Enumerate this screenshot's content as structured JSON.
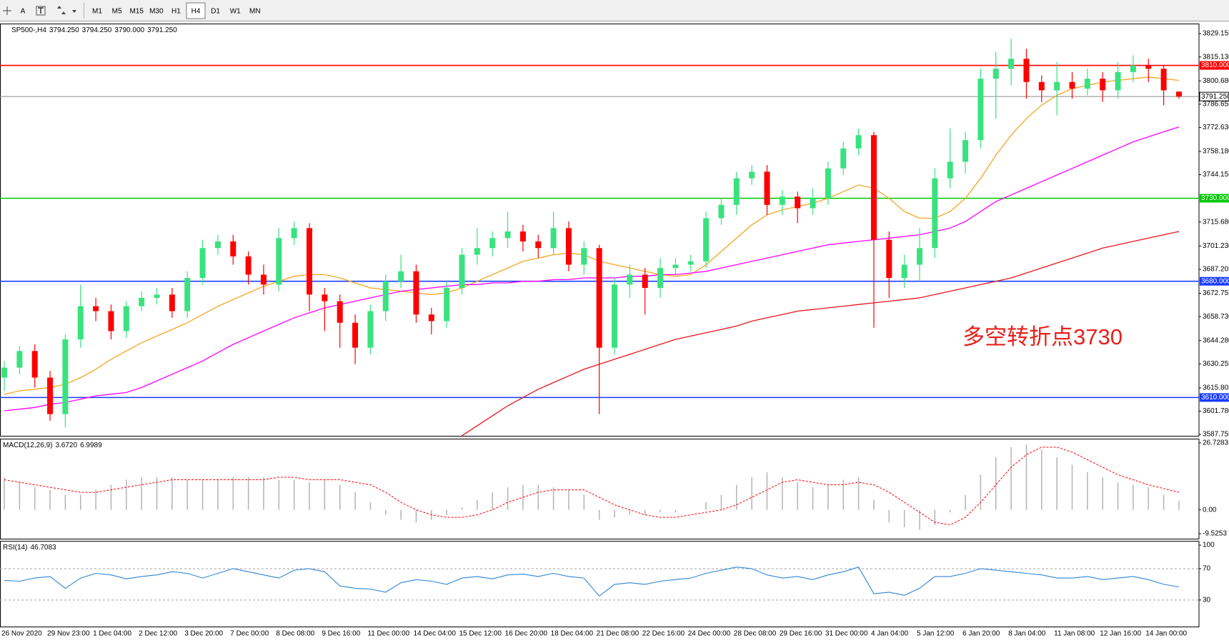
{
  "toolbar": {
    "text_tool": "A",
    "timeframes": [
      "M1",
      "M5",
      "M15",
      "M30",
      "H1",
      "H4",
      "D1",
      "W1",
      "MN"
    ],
    "active": "H4"
  },
  "chart_data": [
    {
      "type": "candlestick",
      "title": "SP500-,H4",
      "header_values": [
        {
          "value": 3794.25,
          "label": "3794.250"
        },
        {
          "value": 3794.25,
          "label": "3794.250"
        },
        {
          "value": 3790,
          "label": "3790.000"
        },
        {
          "value": 3791.25,
          "label": "3791.250"
        }
      ],
      "categories": [
        "26 Nov 2020",
        null,
        null,
        "29 Nov 23:00",
        null,
        null,
        "1 Dec 04:00",
        null,
        null,
        "2 Dec 12:00",
        null,
        null,
        "3 Dec 20:00",
        null,
        null,
        "7 Dec 00:00",
        null,
        null,
        "8 Dec 08:00",
        null,
        null,
        "9 Dec 16:00",
        null,
        null,
        "11 Dec 00:00",
        null,
        null,
        "14 Dec 04:00",
        null,
        null,
        "15 Dec 12:00",
        null,
        null,
        "16 Dec 20:00",
        null,
        null,
        "18 Dec 04:00",
        null,
        null,
        "21 Dec 08:00",
        null,
        null,
        "22 Dec 16:00",
        null,
        null,
        "24 Dec 00:00",
        null,
        null,
        "28 Dec 08:00",
        null,
        null,
        "29 Dec 16:00",
        null,
        null,
        "31 Dec 00:00",
        null,
        null,
        "4 Jan 04:00",
        null,
        null,
        "5 Jan 12:00",
        null,
        null,
        "6 Jan 20:00",
        null,
        null,
        "8 Jan 04:00",
        null,
        null,
        "11 Jan 08:00",
        null,
        null,
        "12 Jan 16:00",
        null,
        null,
        "14 Jan 00:00",
        null,
        null
      ],
      "open": [
        3622,
        3628,
        3638,
        3622,
        3600,
        3645,
        3665,
        3662,
        3650,
        3665,
        3670,
        3672,
        3662,
        3682,
        3700,
        3704,
        3695,
        3684,
        3678,
        3706,
        3712,
        3672,
        3668,
        3655,
        3640,
        3662,
        3680,
        3686,
        3660,
        3656,
        3676,
        3696,
        3700,
        3706,
        3710,
        3704,
        3700,
        3712,
        3690,
        3700,
        3640,
        3678,
        3684,
        3676,
        3688,
        3690,
        3692,
        3718,
        3726,
        3742,
        3746,
        3726,
        3731,
        3724,
        3730,
        3748,
        3760,
        3768,
        3705,
        3682,
        3690,
        3700,
        3742,
        3752,
        3765,
        3802,
        3808,
        3814,
        3800,
        3795,
        3800,
        3796,
        3802,
        3795,
        3806,
        3810,
        3808,
        3794.25
      ],
      "high": [
        3632,
        3641,
        3642,
        3626,
        3648,
        3678,
        3670,
        3666,
        3668,
        3674,
        3676,
        3676,
        3686,
        3705,
        3708,
        3708,
        3698,
        3690,
        3712,
        3716,
        3715,
        3676,
        3672,
        3660,
        3666,
        3684,
        3696,
        3690,
        3664,
        3680,
        3700,
        3712,
        3710,
        3722,
        3714,
        3708,
        3722,
        3716,
        3704,
        3702,
        3682,
        3690,
        3688,
        3694,
        3694,
        3696,
        3722,
        3730,
        3746,
        3750,
        3750,
        3735,
        3734,
        3736,
        3752,
        3764,
        3772,
        3770,
        3710,
        3696,
        3712,
        3748,
        3772,
        3770,
        3808,
        3818,
        3826,
        3820,
        3804,
        3812,
        3806,
        3808,
        3806,
        3812,
        3816,
        3814,
        3810,
        3794.25
      ],
      "low": [
        3614,
        3624,
        3616,
        3596,
        3592,
        3640,
        3656,
        3645,
        3646,
        3662,
        3666,
        3658,
        3658,
        3678,
        3696,
        3690,
        3678,
        3672,
        3674,
        3702,
        3662,
        3650,
        3640,
        3630,
        3636,
        3656,
        3676,
        3655,
        3648,
        3652,
        3672,
        3690,
        3695,
        3700,
        3698,
        3694,
        3696,
        3686,
        3684,
        3600,
        3636,
        3670,
        3660,
        3670,
        3684,
        3686,
        3688,
        3714,
        3720,
        3738,
        3720,
        3720,
        3715,
        3720,
        3726,
        3744,
        3756,
        3652,
        3670,
        3676,
        3680,
        3694,
        3736,
        3745,
        3760,
        3778,
        3798,
        3790,
        3788,
        3780,
        3790,
        3792,
        3788,
        3790,
        3800,
        3800,
        3786,
        3790
      ],
      "close": [
        3628,
        3638,
        3622,
        3600,
        3645,
        3665,
        3662,
        3650,
        3665,
        3670,
        3672,
        3662,
        3682,
        3700,
        3704,
        3695,
        3684,
        3678,
        3706,
        3712,
        3672,
        3668,
        3655,
        3640,
        3662,
        3680,
        3686,
        3660,
        3656,
        3676,
        3696,
        3700,
        3706,
        3710,
        3704,
        3700,
        3712,
        3690,
        3700,
        3640,
        3678,
        3684,
        3676,
        3688,
        3690,
        3692,
        3718,
        3726,
        3742,
        3746,
        3726,
        3731,
        3724,
        3730,
        3748,
        3760,
        3768,
        3705,
        3682,
        3690,
        3700,
        3742,
        3752,
        3765,
        3802,
        3808,
        3814,
        3800,
        3795,
        3800,
        3796,
        3802,
        3795,
        3806,
        3810,
        3808,
        3795,
        3791.25
      ],
      "up_color": "#39e27f",
      "down_color": "#ff0000",
      "series": [
        {
          "color": "#f5a623",
          "values": [
            3612,
            3614,
            3615,
            3616,
            3618,
            3622,
            3627,
            3633,
            3638,
            3643,
            3647,
            3651,
            3655,
            3660,
            3665,
            3669,
            3673,
            3677,
            3680,
            3683,
            3684,
            3684,
            3682,
            3679,
            3676,
            3675,
            3674,
            3673,
            3672,
            3673,
            3676,
            3680,
            3684,
            3688,
            3692,
            3694,
            3696,
            3697,
            3696,
            3692,
            3690,
            3688,
            3686,
            3684,
            3683,
            3684,
            3690,
            3698,
            3706,
            3714,
            3720,
            3723,
            3725,
            3727,
            3730,
            3734,
            3738,
            3736,
            3730,
            3722,
            3718,
            3718,
            3722,
            3730,
            3742,
            3756,
            3768,
            3778,
            3786,
            3792,
            3796,
            3798,
            3800,
            3801,
            3802,
            3803,
            3802,
            3801
          ]
        },
        {
          "color": "#ff00ff",
          "values": [
            3602,
            3603,
            3604,
            3606,
            3607,
            3609,
            3611,
            3612,
            3613,
            3616,
            3620,
            3624,
            3628,
            3632,
            3637,
            3642,
            3646,
            3650,
            3654,
            3658,
            3661,
            3664,
            3666,
            3668,
            3670,
            3672,
            3674,
            3675,
            3676,
            3677,
            3678,
            3678,
            3679,
            3679,
            3680,
            3680,
            3681,
            3681,
            3682,
            3682,
            3682,
            3683,
            3683,
            3684,
            3684,
            3685,
            3686,
            3688,
            3690,
            3692,
            3694,
            3696,
            3698,
            3700,
            3702,
            3703,
            3704,
            3705,
            3706,
            3707,
            3708,
            3710,
            3712,
            3716,
            3722,
            3728,
            3732,
            3736,
            3740,
            3744,
            3748,
            3752,
            3756,
            3760,
            3764,
            3767,
            3770,
            3773
          ]
        },
        {
          "color": "#e8141c",
          "values": [
            null,
            null,
            null,
            null,
            null,
            null,
            null,
            null,
            null,
            null,
            null,
            null,
            null,
            null,
            null,
            null,
            null,
            null,
            null,
            null,
            null,
            null,
            null,
            null,
            null,
            null,
            null,
            null,
            null,
            null,
            3587,
            3593,
            3599,
            3605,
            3610,
            3615,
            3619,
            3623,
            3627,
            3630,
            3633,
            3636,
            3639,
            3642,
            3645,
            3647,
            3649,
            3651,
            3653,
            3656,
            3658,
            3660,
            3662,
            3663,
            3664,
            3665,
            3666,
            3667,
            3668,
            3669,
            3670,
            3672,
            3674,
            3676,
            3678,
            3680,
            3682,
            3685,
            3688,
            3691,
            3694,
            3697,
            3700,
            3702,
            3704,
            3706,
            3708,
            3710
          ]
        }
      ],
      "hlines": [
        {
          "value": 3810,
          "label": "3810.000",
          "color": "#ff0000"
        },
        {
          "value": 3730,
          "label": "3730.000",
          "color": "#00c800"
        },
        {
          "value": 3680,
          "label": "3680.000",
          "color": "#1a3cff"
        },
        {
          "value": 3610,
          "label": "3610.000",
          "color": "#1a3cff"
        }
      ],
      "current_price": {
        "value": 3791.25,
        "label": "3791.250",
        "color": "#8c8c8c"
      },
      "annotation": {
        "text": "多空转折点3730",
        "color": "#e8201a"
      },
      "ylim": [
        3586.5,
        3835.2
      ],
      "yticks": [
        3829.155,
        {
          "value": 3815.13,
          "label": "3815.130"
        },
        {
          "value": 3800.68,
          "label": "3800.680"
        },
        3786.655,
        {
          "value": 3772.63,
          "label": "3772.630"
        },
        {
          "value": 3758.18,
          "label": "3758.180"
        },
        3744.155,
        {
          "value": 3715.68,
          "label": "3715.680"
        },
        {
          "value": 3701.23,
          "label": "3701.230"
        },
        3687.205,
        3672.755,
        {
          "value": 3658.73,
          "label": "3658.730"
        },
        {
          "value": 3644.28,
          "label": "3644.280"
        },
        3630.255,
        3615.805,
        {
          "value": 3601.78,
          "label": "3601.780"
        },
        3587.755
      ]
    },
    {
      "type": "macd",
      "title": "MACD(12,26,9)",
      "header_values": [
        {
          "value": 3.672,
          "label": "3.6720"
        },
        6.9989
      ],
      "histogram": {
        "color": "#b4b4b4",
        "values": [
          13,
          11,
          9,
          8,
          6,
          6,
          8,
          10,
          12,
          13,
          13,
          13,
          12,
          12,
          12,
          13,
          13,
          13,
          12,
          12,
          11,
          12,
          10,
          7,
          3,
          -2,
          -4,
          -5,
          -4,
          -2,
          1,
          4,
          7,
          9,
          10,
          10,
          9,
          8,
          6,
          -4,
          -3,
          -2,
          -2,
          -1,
          -1,
          0,
          3,
          6,
          10,
          13,
          15,
          13,
          11,
          9,
          10,
          12,
          13,
          4,
          -5,
          -7,
          -8,
          -6,
          -1,
          6,
          14,
          21,
          25,
          26,
          24,
          21,
          18,
          15,
          13,
          11,
          10,
          9,
          6,
          3.672
        ]
      },
      "signal": {
        "color": "#ff0000",
        "values": [
          12,
          11,
          10,
          9,
          8,
          7,
          7,
          8,
          9,
          10,
          11,
          12,
          12,
          12,
          12,
          12,
          12,
          12,
          13,
          13,
          12,
          12,
          12,
          11,
          10,
          7,
          3,
          0,
          -2,
          -3,
          -3,
          -2,
          0,
          3,
          5,
          7,
          8,
          8,
          8,
          5,
          2,
          0,
          -2,
          -3,
          -3,
          -2,
          -1,
          0,
          2,
          5,
          8,
          11,
          12,
          11,
          10,
          10,
          11,
          10,
          7,
          3,
          -1,
          -5,
          -6,
          -3,
          3,
          10,
          17,
          22,
          25,
          25,
          23,
          20,
          17,
          14,
          12,
          10,
          8.5,
          6.9989
        ]
      },
      "ylim": [
        -11.8,
        28.4
      ],
      "yticks": [
        26.7283,
        {
          "value": 0,
          "label": "0.00"
        },
        -9.5253
      ]
    },
    {
      "type": "line",
      "title": "RSI(14)",
      "header_values": [
        46.7083
      ],
      "color": "#2f86d8",
      "values": [
        55,
        54,
        58,
        60,
        45,
        58,
        64,
        62,
        57,
        60,
        62,
        66,
        64,
        58,
        64,
        70,
        66,
        62,
        58,
        68,
        70,
        66,
        48,
        45,
        44,
        40,
        52,
        56,
        54,
        50,
        58,
        60,
        57,
        62,
        63,
        60,
        64,
        60,
        58,
        35,
        50,
        52,
        50,
        54,
        56,
        58,
        64,
        68,
        72,
        70,
        62,
        58,
        60,
        56,
        62,
        66,
        72,
        38,
        40,
        36,
        45,
        60,
        60,
        64,
        70,
        68,
        66,
        64,
        62,
        58,
        58,
        60,
        56,
        58,
        60,
        56,
        50,
        46.7083
      ],
      "levels": [
        70,
        30
      ],
      "ylim": [
        -4.8,
        105.5
      ],
      "yticks": [
        100,
        70,
        30
      ]
    }
  ]
}
